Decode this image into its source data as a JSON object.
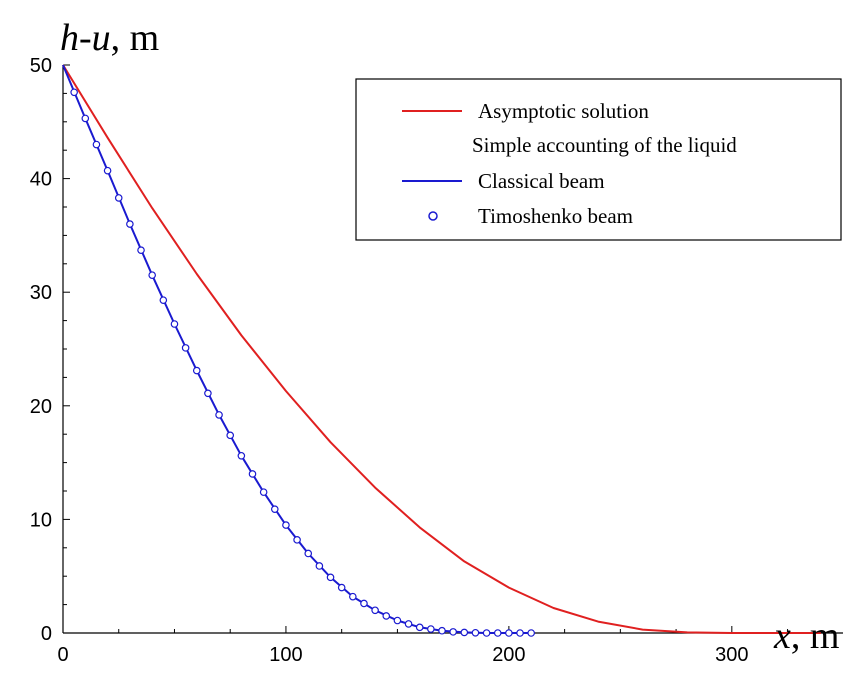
{
  "chart_data": {
    "type": "line",
    "xlabel_var": "x",
    "xlabel_unit": ", m",
    "ylabel_var1": "h",
    "ylabel_dash": "-",
    "ylabel_var2": "u",
    "ylabel_unit": ", m",
    "xlim": [
      0,
      340
    ],
    "ylim": [
      0,
      50
    ],
    "xticks": [
      0,
      100,
      200,
      300
    ],
    "yticks": [
      0,
      10,
      20,
      30,
      40,
      50
    ],
    "grid": false,
    "legend_position": "top-right",
    "series": [
      {
        "name": "Asymptotic solution",
        "style": "line",
        "color": "#e02020",
        "x": [
          0,
          20,
          40,
          60,
          80,
          100,
          120,
          140,
          160,
          180,
          200,
          220,
          240,
          260,
          280,
          300,
          320,
          340
        ],
        "y": [
          50,
          43.6,
          37.4,
          31.6,
          26.2,
          21.3,
          16.8,
          12.8,
          9.3,
          6.3,
          4.0,
          2.2,
          1.0,
          0.3,
          0.05,
          0.0,
          0.0,
          0.0
        ]
      },
      {
        "name": "Simple accounting of the liquid",
        "style": "none",
        "color": "#000000",
        "x": [],
        "y": []
      },
      {
        "name": "Classical beam",
        "style": "line",
        "color": "#1a1ad0",
        "x": [
          0,
          10,
          20,
          30,
          40,
          50,
          60,
          70,
          80,
          90,
          100,
          110,
          120,
          130,
          140,
          150,
          160,
          170,
          180,
          190,
          200,
          210
        ],
        "y": [
          50,
          45.3,
          40.7,
          36.0,
          31.5,
          27.2,
          23.1,
          19.2,
          15.6,
          12.4,
          9.5,
          7.0,
          4.9,
          3.2,
          2.0,
          1.1,
          0.5,
          0.2,
          0.05,
          0.0,
          0.0,
          0.0
        ]
      },
      {
        "name": "Timoshenko beam",
        "style": "markers",
        "color": "#1a1ad0",
        "x": [
          5,
          10,
          15,
          20,
          25,
          30,
          35,
          40,
          45,
          50,
          55,
          60,
          65,
          70,
          75,
          80,
          85,
          90,
          95,
          100,
          105,
          110,
          115,
          120,
          125,
          130,
          135,
          140,
          145,
          150,
          155,
          160,
          165,
          170,
          175,
          180,
          185,
          190,
          195,
          200,
          205,
          210
        ],
        "y": [
          47.6,
          45.3,
          43.0,
          40.7,
          38.3,
          36.0,
          33.7,
          31.5,
          29.3,
          27.2,
          25.1,
          23.1,
          21.1,
          19.2,
          17.4,
          15.6,
          14.0,
          12.4,
          10.9,
          9.5,
          8.2,
          7.0,
          5.9,
          4.9,
          4.0,
          3.2,
          2.6,
          2.0,
          1.5,
          1.1,
          0.8,
          0.5,
          0.35,
          0.2,
          0.1,
          0.05,
          0.02,
          0.0,
          0.0,
          0.0,
          0.0,
          0.0
        ]
      }
    ]
  }
}
